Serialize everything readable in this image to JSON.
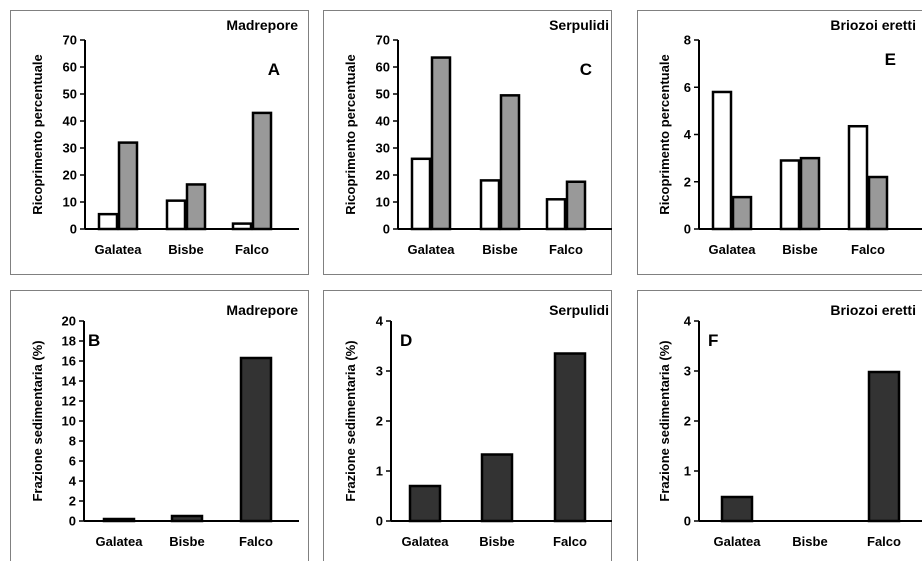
{
  "chart_data": [
    {
      "panel": "A",
      "type": "bar",
      "title": "Madrepore",
      "ylabel": "Ricoprimento percentuale",
      "xlabel": "",
      "categories": [
        "Galatea",
        "Bisbe",
        "Falco"
      ],
      "ylim": [
        0,
        70
      ],
      "yticks": [
        0,
        10,
        20,
        30,
        40,
        50,
        60,
        70
      ],
      "series": [
        {
          "color": "#ffffff",
          "values": [
            5.5,
            10.5,
            2
          ]
        },
        {
          "color": "#999999",
          "values": [
            32,
            16.5,
            43
          ]
        }
      ]
    },
    {
      "panel": "C",
      "type": "bar",
      "title": "Serpulidi",
      "ylabel": "Ricoprimento percentuale",
      "xlabel": "",
      "categories": [
        "Galatea",
        "Bisbe",
        "Falco"
      ],
      "ylim": [
        0,
        70
      ],
      "yticks": [
        0,
        10,
        20,
        30,
        40,
        50,
        60,
        70
      ],
      "series": [
        {
          "color": "#ffffff",
          "values": [
            26,
            18,
            11
          ]
        },
        {
          "color": "#999999",
          "values": [
            63.5,
            49.5,
            17.5
          ]
        }
      ]
    },
    {
      "panel": "E",
      "type": "bar",
      "title": "Briozoi eretti",
      "ylabel": "Ricoprimento percentuale",
      "xlabel": "",
      "categories": [
        "Galatea",
        "Bisbe",
        "Falco"
      ],
      "ylim": [
        0,
        8
      ],
      "yticks": [
        0,
        2,
        4,
        6,
        8
      ],
      "series": [
        {
          "color": "#ffffff",
          "values": [
            5.8,
            2.9,
            4.35
          ]
        },
        {
          "color": "#999999",
          "values": [
            1.35,
            3.0,
            2.2
          ]
        }
      ]
    },
    {
      "panel": "B",
      "type": "bar",
      "title": "Madrepore",
      "ylabel": "Frazione sedimentaria (%)",
      "xlabel": "",
      "categories": [
        "Galatea",
        "Bisbe",
        "Falco"
      ],
      "ylim": [
        0,
        20
      ],
      "yticks": [
        0,
        2,
        4,
        6,
        8,
        10,
        12,
        14,
        16,
        18,
        20
      ],
      "series": [
        {
          "color": "#333333",
          "values": [
            0.2,
            0.5,
            16.3
          ]
        }
      ]
    },
    {
      "panel": "D",
      "type": "bar",
      "title": "Serpulidi",
      "ylabel": "Frazione sedimentaria (%)",
      "xlabel": "",
      "categories": [
        "Galatea",
        "Bisbe",
        "Falco"
      ],
      "ylim": [
        0,
        4
      ],
      "yticks": [
        0,
        1,
        2,
        3,
        4
      ],
      "series": [
        {
          "color": "#333333",
          "values": [
            0.7,
            1.33,
            3.35
          ]
        }
      ]
    },
    {
      "panel": "F",
      "type": "bar",
      "title": "Briozoi eretti",
      "ylabel": "Frazione sedimentaria (%)",
      "xlabel": "",
      "categories": [
        "Galatea",
        "Bisbe",
        "Falco"
      ],
      "ylim": [
        0,
        4
      ],
      "yticks": [
        0,
        1,
        2,
        3,
        4
      ],
      "series": [
        {
          "color": "#333333",
          "values": [
            0.48,
            0,
            2.98
          ]
        }
      ]
    }
  ]
}
